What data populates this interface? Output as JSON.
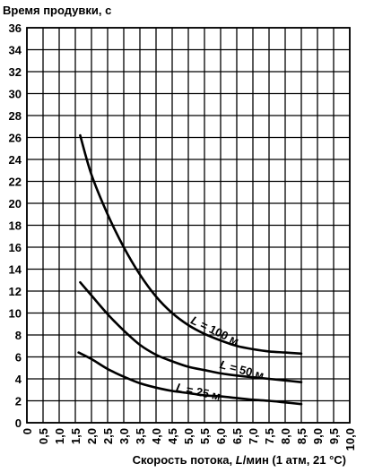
{
  "chart_data": {
    "type": "line",
    "ylabel": "Время продувки, с",
    "xlabel_parts": [
      "Скорость потока, ",
      "L",
      "/мин (1 атм, 21 °C)"
    ],
    "xlim": [
      0,
      10
    ],
    "ylim": [
      0,
      36
    ],
    "x_step": 0.5,
    "y_step": 2,
    "x_tick_labels": [
      "0",
      "0,5",
      "1,0",
      "1,5",
      "2,0",
      "2,5",
      "3,0",
      "3,5",
      "4,0",
      "4,5",
      "5,0",
      "5,5",
      "6,0",
      "6,5",
      "7,0",
      "7,5",
      "8,0",
      "8,5",
      "9,0",
      "9,5",
      "10,0"
    ],
    "y_tick_labels": [
      "0",
      "2",
      "4",
      "6",
      "8",
      "10",
      "12",
      "14",
      "16",
      "18",
      "20",
      "22",
      "24",
      "26",
      "28",
      "30",
      "32",
      "34",
      "36"
    ],
    "grid": true,
    "series": [
      {
        "label_var": "L",
        "label_rest": " = 100 м",
        "points": [
          [
            1.65,
            26.2
          ],
          [
            2.0,
            22.6
          ],
          [
            2.5,
            19.0
          ],
          [
            3.0,
            16.0
          ],
          [
            3.5,
            13.5
          ],
          [
            4.0,
            11.5
          ],
          [
            4.5,
            10.0
          ],
          [
            5.0,
            8.9
          ],
          [
            5.5,
            8.1
          ],
          [
            6.0,
            7.5
          ],
          [
            6.5,
            7.0
          ],
          [
            7.0,
            6.7
          ],
          [
            7.5,
            6.5
          ],
          [
            8.0,
            6.4
          ],
          [
            8.5,
            6.3
          ]
        ]
      },
      {
        "label_var": "L",
        "label_rest": " = 50 м",
        "points": [
          [
            1.65,
            12.8
          ],
          [
            2.0,
            11.6
          ],
          [
            2.5,
            9.9
          ],
          [
            3.0,
            8.4
          ],
          [
            3.5,
            7.1
          ],
          [
            4.0,
            6.2
          ],
          [
            4.5,
            5.6
          ],
          [
            5.0,
            5.1
          ],
          [
            5.5,
            4.8
          ],
          [
            6.0,
            4.5
          ],
          [
            6.5,
            4.3
          ],
          [
            7.0,
            4.15
          ],
          [
            7.5,
            4.0
          ],
          [
            8.0,
            3.85
          ],
          [
            8.5,
            3.7
          ]
        ]
      },
      {
        "label_var": "L",
        "label_rest": " = 25 м",
        "points": [
          [
            1.6,
            6.4
          ],
          [
            2.0,
            5.8
          ],
          [
            2.5,
            4.9
          ],
          [
            3.0,
            4.2
          ],
          [
            3.5,
            3.6
          ],
          [
            4.0,
            3.2
          ],
          [
            4.5,
            2.9
          ],
          [
            5.0,
            2.7
          ],
          [
            5.5,
            2.5
          ],
          [
            6.0,
            2.4
          ],
          [
            6.5,
            2.25
          ],
          [
            7.0,
            2.1
          ],
          [
            7.5,
            2.0
          ],
          [
            8.0,
            1.85
          ],
          [
            8.5,
            1.7
          ]
        ]
      }
    ]
  }
}
